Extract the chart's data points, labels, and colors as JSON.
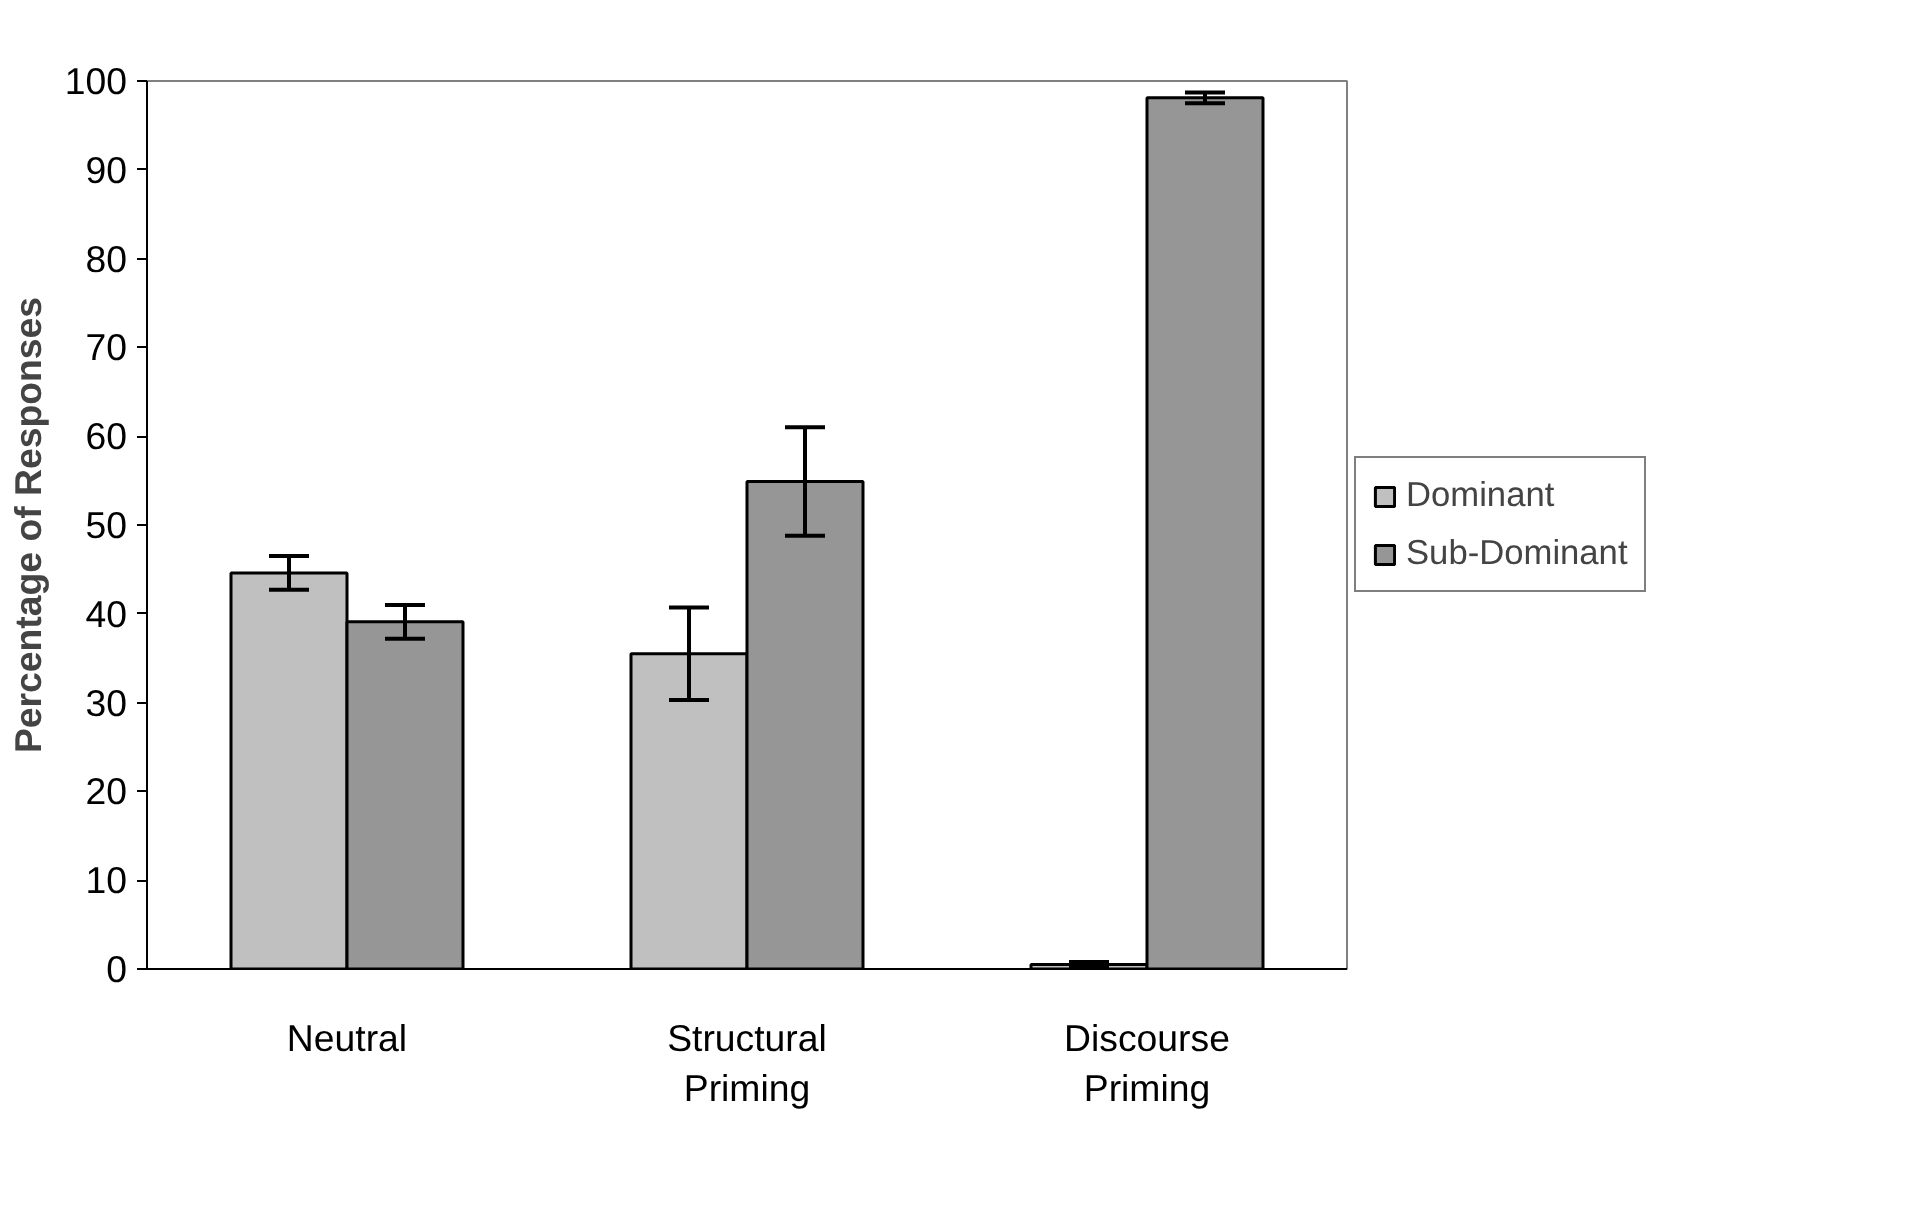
{
  "chart_data": {
    "type": "bar",
    "ylabel": "Percentage of Responses",
    "categories": [
      "Neutral",
      "Structural Priming",
      "Discourse Priming"
    ],
    "series": [
      {
        "name": "Dominant",
        "color": "#c0c0c0",
        "values": [
          44.6,
          35.5,
          0.5
        ],
        "errors": [
          1.9,
          5.2,
          0.3
        ]
      },
      {
        "name": "Sub-Dominant",
        "color": "#969696",
        "values": [
          39.1,
          54.9,
          98.1
        ],
        "errors": [
          1.9,
          6.1,
          0.6
        ]
      }
    ],
    "ylim": [
      0,
      100
    ],
    "yticks": [
      0,
      10,
      20,
      30,
      40,
      50,
      60,
      70,
      80,
      90,
      100
    ],
    "grid": false,
    "legend": "right"
  }
}
